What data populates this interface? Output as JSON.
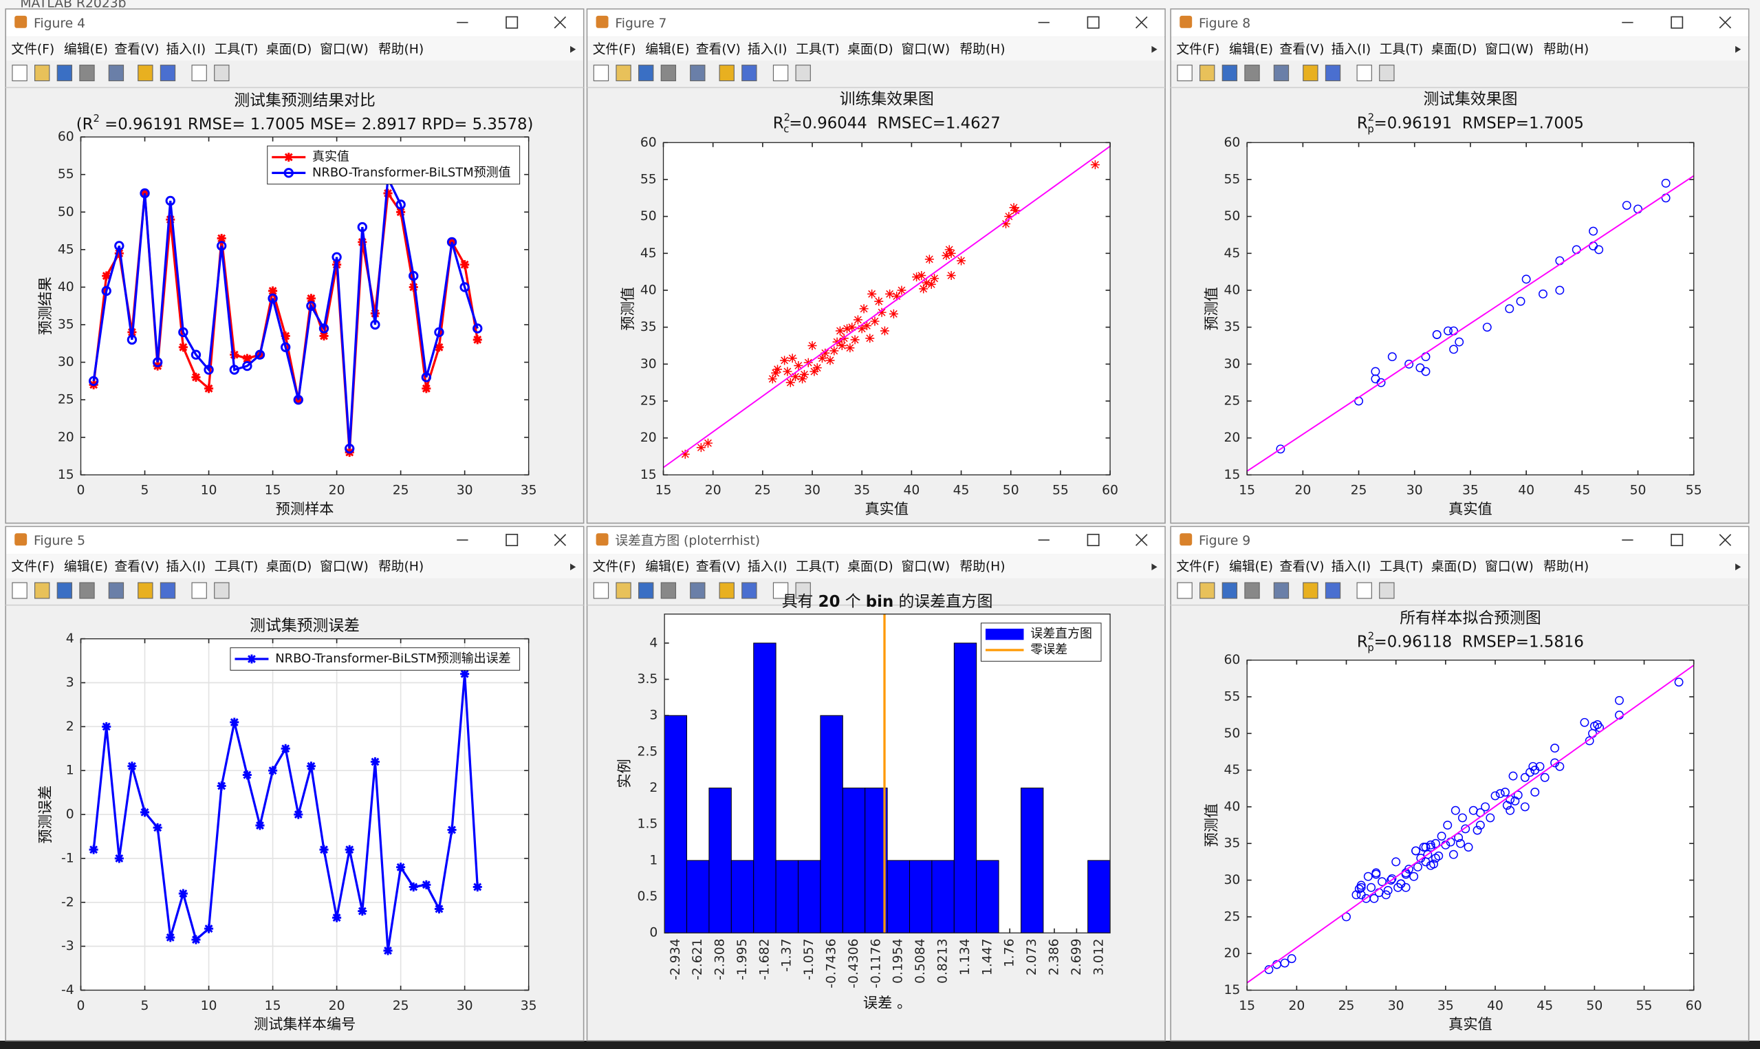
{
  "app_title": "MATLAB R2023b",
  "menu": [
    "文件(F)",
    "编辑(E)",
    "查看(V)",
    "插入(I)",
    "工具(T)",
    "桌面(D)",
    "窗口(W)",
    "帮助(H)"
  ],
  "windows": [
    {
      "title": "Figure 4"
    },
    {
      "title": "Figure 7"
    },
    {
      "title": "Figure 8"
    },
    {
      "title": "Figure 5"
    },
    {
      "title": "误差直方图 (ploterrhist)"
    },
    {
      "title": "Figure 9"
    }
  ],
  "chart_data": [
    {
      "type": "line",
      "title": "测试集预测结果对比",
      "subtitle": [
        {
          "text": "(R"
        },
        {
          "text": "2",
          "style": "sup"
        },
        {
          "text": " =0.96191 RMSE= 1.7005 MSE= 2.8917 RPD= 5.3578)"
        }
      ],
      "x_label": "预测样本",
      "y_label": "预测结果",
      "x": [
        1,
        2,
        3,
        4,
        5,
        6,
        7,
        8,
        9,
        10,
        11,
        12,
        13,
        14,
        15,
        16,
        17,
        18,
        19,
        20,
        21,
        22,
        23,
        24,
        25,
        26,
        27,
        28,
        29,
        30,
        31
      ],
      "series": [
        {
          "name": "真实值",
          "color": "#ff0000",
          "marker": "*",
          "values": [
            27,
            41.5,
            44.5,
            34,
            52.5,
            29.5,
            49,
            32,
            28,
            26.5,
            46.5,
            31,
            30.5,
            31,
            39.5,
            33.5,
            25,
            38.5,
            33.5,
            43,
            18,
            46,
            36.5,
            52.5,
            50,
            40,
            26.5,
            32,
            46,
            43,
            33
          ]
        },
        {
          "name": "NRBO-Transformer-BiLSTM预测值",
          "color": "#0000ff",
          "marker": "o",
          "values": [
            27.5,
            39.5,
            45.5,
            33,
            52.5,
            30,
            51.5,
            34,
            31,
            29,
            45.5,
            29,
            29.5,
            31,
            38.5,
            32,
            25,
            37.5,
            34.5,
            44,
            18.5,
            48,
            35,
            54.5,
            51,
            41.5,
            28,
            34,
            46,
            40,
            34.5
          ]
        }
      ],
      "xlim": [
        0,
        35
      ],
      "xticks": [
        0,
        5,
        10,
        15,
        20,
        25,
        30,
        35
      ],
      "ylim": [
        15,
        60
      ],
      "yticks": [
        15,
        20,
        25,
        30,
        35,
        40,
        45,
        50,
        55,
        60
      ],
      "grid": false,
      "legend": "northeast"
    },
    {
      "type": "scatter",
      "title": "训练集效果图",
      "subtitle": [
        {
          "text": "R"
        },
        {
          "text": "2",
          "style": "sup"
        },
        {
          "text": "c",
          "style": "sub"
        },
        {
          "text": "=0.96044  RMSEC=1.4627"
        }
      ],
      "x_label": "真实值",
      "y_label": "预测值",
      "series": [
        {
          "color": "#ff0000",
          "marker": "*",
          "x": [
            17.2,
            18.8,
            19.5,
            26,
            26.3,
            26.5,
            27.2,
            27.5,
            27.8,
            28,
            28.3,
            28.6,
            29,
            29.2,
            29.6,
            30,
            30.2,
            30.5,
            31,
            31.3,
            31.8,
            32.2,
            32.5,
            32.8,
            33,
            33.2,
            33.5,
            33.8,
            34,
            34.3,
            34.6,
            35,
            35.2,
            35.5,
            35.8,
            36,
            36.3,
            36.7,
            37,
            37.3,
            37.8,
            38.2,
            38.5,
            39,
            40.5,
            41,
            41.2,
            41.5,
            41.8,
            42,
            42.3,
            43.5,
            43.8,
            44,
            44,
            45,
            49.5,
            49.8,
            50.3,
            50.5,
            58.5
          ],
          "values": [
            17.8,
            18.7,
            19.3,
            28,
            28.8,
            29.3,
            30.5,
            29,
            27.5,
            30.8,
            28.3,
            29.8,
            28,
            28.6,
            30.2,
            32.5,
            29,
            29.5,
            30.8,
            31.5,
            30.5,
            31.8,
            33,
            34.5,
            32.5,
            33.5,
            34.8,
            32.2,
            35,
            33.3,
            36,
            34.8,
            37.5,
            35.2,
            33.5,
            39.5,
            35.8,
            38.5,
            37,
            34.5,
            39.5,
            36.8,
            39.2,
            40,
            41.8,
            42,
            40.2,
            41,
            44.2,
            40.8,
            41.6,
            44.7,
            45.5,
            42,
            45,
            44,
            49,
            50,
            51.2,
            50.8,
            57
          ]
        },
        {
          "color": "#ff00ff",
          "marker": "none",
          "x": [
            15,
            60
          ],
          "values": [
            16,
            59.5
          ]
        }
      ],
      "xlim": [
        15,
        60
      ],
      "xticks": [
        15,
        20,
        25,
        30,
        35,
        40,
        45,
        50,
        55,
        60
      ],
      "ylim": [
        15,
        60
      ],
      "yticks": [
        15,
        20,
        25,
        30,
        35,
        40,
        45,
        50,
        55,
        60
      ],
      "grid": false
    },
    {
      "type": "scatter",
      "title": "测试集效果图",
      "subtitle": [
        {
          "text": "R"
        },
        {
          "text": "2",
          "style": "sup"
        },
        {
          "text": "p",
          "style": "sub"
        },
        {
          "text": "=0.96191  RMSEP=1.7005"
        }
      ],
      "x_label": "真实值",
      "y_label": "预测值",
      "series": [
        {
          "color": "#0000ff",
          "marker": "o",
          "x": [
            27,
            41.5,
            44.5,
            34,
            52.5,
            29.5,
            49,
            32,
            28,
            26.5,
            46.5,
            31,
            30.5,
            31,
            39.5,
            33.5,
            25,
            38.5,
            33.5,
            43,
            18,
            46,
            36.5,
            52.5,
            50,
            40,
            26.5,
            32,
            46,
            43,
            33
          ],
          "values": [
            27.5,
            39.5,
            45.5,
            33,
            52.5,
            30,
            51.5,
            34,
            31,
            29,
            45.5,
            29,
            29.5,
            31,
            38.5,
            32,
            25,
            37.5,
            34.5,
            44,
            18.5,
            48,
            35,
            54.5,
            51,
            41.5,
            28,
            34,
            46,
            40,
            34.5
          ]
        },
        {
          "color": "#ff00ff",
          "marker": "none",
          "x": [
            15,
            55
          ],
          "values": [
            15.5,
            55.5
          ]
        }
      ],
      "xlim": [
        15,
        55
      ],
      "xticks": [
        15,
        20,
        25,
        30,
        35,
        40,
        45,
        50,
        55
      ],
      "ylim": [
        15,
        60
      ],
      "yticks": [
        15,
        20,
        25,
        30,
        35,
        40,
        45,
        50,
        55,
        60
      ],
      "grid": false
    },
    {
      "type": "line",
      "title": "测试集预测误差",
      "x_label": "测试集样本编号",
      "y_label": "预测误差",
      "x": [
        1,
        2,
        3,
        4,
        5,
        6,
        7,
        8,
        9,
        10,
        11,
        12,
        13,
        14,
        15,
        16,
        17,
        18,
        19,
        20,
        21,
        22,
        23,
        24,
        25,
        26,
        27,
        28,
        29,
        30,
        31
      ],
      "series": [
        {
          "name": "NRBO-Transformer-BiLSTM预测输出误差",
          "color": "#0000ff",
          "marker": "*",
          "values": [
            -0.8,
            2,
            -1,
            1.1,
            0.05,
            -0.3,
            -2.8,
            -1.8,
            -2.85,
            -2.6,
            0.65,
            2.1,
            0.9,
            -0.25,
            1,
            1.5,
            0,
            1.1,
            -0.8,
            -2.35,
            -0.8,
            -2.2,
            1.2,
            -3.1,
            -1.2,
            -1.65,
            -1.6,
            -2.15,
            -0.35,
            3.2,
            -1.65
          ]
        }
      ],
      "xlim": [
        0,
        35
      ],
      "xticks": [
        0,
        5,
        10,
        15,
        20,
        25,
        30,
        35
      ],
      "ylim": [
        -4,
        4
      ],
      "yticks": [
        -4,
        -3,
        -2,
        -1,
        0,
        1,
        2,
        3,
        4
      ],
      "grid": true,
      "legend": "northeast"
    },
    {
      "type": "histogram",
      "title": [
        {
          "text": "具有 "
        },
        {
          "text": "20",
          "style": "bold"
        },
        {
          "text": " 个 "
        },
        {
          "text": "bin",
          "style": "bold"
        },
        {
          "text": " 的误差直方图"
        }
      ],
      "x_label": "误差 。",
      "y_label": "实例",
      "bins": [
        -3.0905,
        -2.7775,
        -2.4645,
        -2.1515,
        -1.8385,
        -1.5255,
        -1.2125,
        -0.8995,
        -0.5865,
        -0.2735,
        0.0395,
        0.3525,
        0.6655,
        0.9785,
        1.2915,
        1.6045,
        1.9175,
        2.2305,
        2.5435,
        2.8565,
        3.1695
      ],
      "series": [
        {
          "name": "误差直方图",
          "color": "#0000ff",
          "values": [
            3,
            1,
            2,
            1,
            4,
            1,
            1,
            3,
            2,
            2,
            1,
            1,
            1,
            4,
            1,
            0,
            2,
            0,
            0,
            1
          ]
        }
      ],
      "reference_lines": [
        {
          "name": "零误差",
          "color": "#ff9900",
          "value": 0
        }
      ],
      "xlim": [
        -3.0905,
        3.1695
      ],
      "xticks": [
        -2.934,
        -2.621,
        -2.308,
        -1.995,
        -1.682,
        -1.37,
        -1.057,
        -0.7436,
        -0.4306,
        -0.1176,
        0.1954,
        0.5084,
        0.8213,
        1.134,
        1.447,
        1.76,
        2.073,
        2.386,
        2.699,
        3.012
      ],
      "ylim": [
        0,
        4.4
      ],
      "yticks": [
        0,
        0.5,
        1,
        1.5,
        2,
        2.5,
        3,
        3.5,
        4
      ],
      "grid": false,
      "legend": "northeast"
    },
    {
      "type": "scatter",
      "title": "所有样本拟合预测图",
      "subtitle": [
        {
          "text": "R"
        },
        {
          "text": "2",
          "style": "sup"
        },
        {
          "text": "p",
          "style": "sub"
        },
        {
          "text": "=0.96118  RMSEP=1.5816"
        }
      ],
      "x_label": "真实值",
      "y_label": "预测值",
      "series": [
        {
          "color": "#0000ff",
          "marker": "o",
          "x": [
            17.2,
            18.8,
            19.5,
            26,
            26.3,
            26.5,
            27.2,
            27.5,
            27.8,
            28,
            28.3,
            28.6,
            29,
            29.2,
            29.6,
            30,
            30.2,
            30.5,
            31,
            31.3,
            31.8,
            32.2,
            32.5,
            32.8,
            33,
            33.2,
            33.5,
            33.8,
            34,
            34.3,
            34.6,
            35,
            35.2,
            35.5,
            35.8,
            36,
            36.3,
            36.7,
            37,
            37.3,
            37.8,
            38.2,
            38.5,
            39,
            40.5,
            41,
            41.2,
            41.5,
            41.8,
            42,
            42.3,
            43.5,
            43.8,
            44,
            44,
            45,
            49.5,
            49.8,
            50.3,
            50.5,
            58.5,
            27,
            41.5,
            44.5,
            34,
            52.5,
            29.5,
            49,
            32,
            28,
            26.5,
            46.5,
            31,
            30.5,
            31,
            39.5,
            33.5,
            25,
            38.5,
            33.5,
            43,
            18,
            46,
            36.5,
            52.5,
            50,
            40,
            26.5,
            32,
            46,
            43,
            33
          ],
          "values": [
            17.8,
            18.7,
            19.3,
            28,
            28.8,
            29.3,
            30.5,
            29,
            27.5,
            30.8,
            28.3,
            29.8,
            28,
            28.6,
            30.2,
            32.5,
            29,
            29.5,
            30.8,
            31.5,
            30.5,
            31.8,
            33,
            34.5,
            32.5,
            33.5,
            34.8,
            32.2,
            35,
            33.3,
            36,
            34.8,
            37.5,
            35.2,
            33.5,
            39.5,
            35.8,
            38.5,
            37,
            34.5,
            39.5,
            36.8,
            39.2,
            40,
            41.8,
            42,
            40.2,
            41,
            44.2,
            40.8,
            41.6,
            44.7,
            45.5,
            42,
            45,
            44,
            49,
            50,
            51.2,
            50.8,
            57,
            27.5,
            39.5,
            45.5,
            33,
            52.5,
            30,
            51.5,
            34,
            31,
            29,
            45.5,
            29,
            29.5,
            31,
            38.5,
            32,
            25,
            37.5,
            34.5,
            44,
            18.5,
            48,
            35,
            54.5,
            51,
            41.5,
            28,
            34,
            46,
            40,
            34.5
          ]
        },
        {
          "color": "#ff00ff",
          "marker": "none",
          "x": [
            15,
            60
          ],
          "values": [
            16,
            59.3
          ]
        }
      ],
      "xlim": [
        15,
        60
      ],
      "xticks": [
        15,
        20,
        25,
        30,
        35,
        40,
        45,
        50,
        55,
        60
      ],
      "ylim": [
        15,
        60
      ],
      "yticks": [
        15,
        20,
        25,
        30,
        35,
        40,
        45,
        50,
        55,
        60
      ],
      "grid": false
    }
  ]
}
